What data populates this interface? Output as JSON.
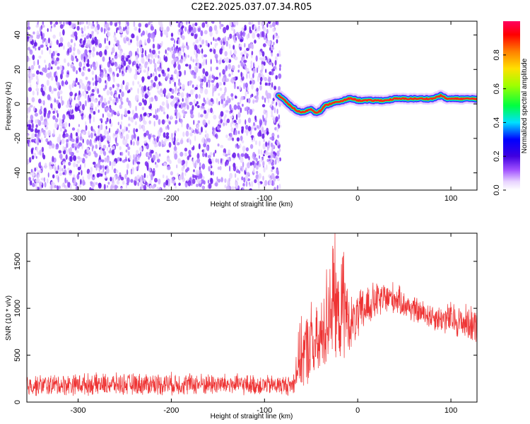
{
  "title": "C2E2.2025.037.07.34.R05",
  "chart_data": [
    {
      "type": "heatmap",
      "name": "spectrogram",
      "xlabel": "Height of straight line (km)",
      "ylabel": "Frequency (Hz)",
      "xlim": [
        -355,
        128
      ],
      "ylim": [
        -50,
        48
      ],
      "xticks": [
        -300,
        -200,
        -100,
        0,
        100
      ],
      "yticks": [
        -40,
        -20,
        0,
        20,
        40
      ],
      "noise_region_x": [
        -355,
        -83
      ],
      "signal_ridge": {
        "x": [
          -85,
          -80,
          -75,
          -70,
          -65,
          -60,
          -55,
          -50,
          -45,
          -40,
          -35,
          -30,
          -25,
          -20,
          -15,
          -10,
          -5,
          0,
          10,
          20,
          30,
          40,
          50,
          60,
          70,
          80,
          90,
          95,
          100,
          110,
          120,
          128
        ],
        "frequency": [
          5,
          3,
          0,
          -2,
          -4,
          -5,
          -4,
          -3,
          -5,
          -4,
          -1,
          0,
          1,
          1,
          2,
          3,
          3,
          2,
          2,
          2,
          2,
          3,
          3,
          3,
          3,
          3,
          5,
          3,
          3,
          3,
          3,
          3
        ]
      },
      "colorbar": {
        "label": "Normalized spectral amplitude",
        "range": [
          0,
          1
        ],
        "ticks": [
          0.0,
          0.2,
          0.4,
          0.6,
          0.8
        ],
        "colors": [
          "#ffffff",
          "#b060ff",
          "#5000e0",
          "#0000ff",
          "#00ffff",
          "#00ff00",
          "#ffff00",
          "#ff8000",
          "#ff0000",
          "#ff0080"
        ]
      }
    },
    {
      "type": "line",
      "name": "snr",
      "xlabel": "Height of straight line (km)",
      "ylabel": "SNR (10 * v/v)",
      "xlim": [
        -355,
        128
      ],
      "ylim": [
        0,
        1800
      ],
      "xticks": [
        -300,
        -200,
        -100,
        0,
        100
      ],
      "yticks": [
        0,
        500,
        1000,
        1500
      ],
      "color": "#ee3333",
      "envelope": {
        "x": [
          -355,
          -300,
          -250,
          -200,
          -150,
          -100,
          -70,
          -62,
          -55,
          -50,
          -45,
          -40,
          -35,
          -30,
          -25,
          -20,
          -15,
          -10,
          -5,
          0,
          10,
          20,
          30,
          40,
          50,
          60,
          70,
          80,
          90,
          100,
          110,
          120,
          128
        ],
        "min": [
          50,
          60,
          60,
          60,
          60,
          60,
          60,
          80,
          100,
          120,
          100,
          180,
          250,
          300,
          350,
          400,
          350,
          500,
          550,
          600,
          750,
          850,
          900,
          920,
          880,
          820,
          790,
          750,
          720,
          680,
          650,
          620,
          600
        ],
        "max": [
          300,
          320,
          320,
          330,
          320,
          300,
          300,
          900,
          1000,
          1150,
          1050,
          1100,
          1400,
          1800,
          1900,
          1300,
          1800,
          1200,
          1150,
          1200,
          1300,
          1300,
          1310,
          1300,
          1200,
          1150,
          1100,
          1080,
          1050,
          1100,
          1050,
          1080,
          1020
        ]
      }
    }
  ]
}
